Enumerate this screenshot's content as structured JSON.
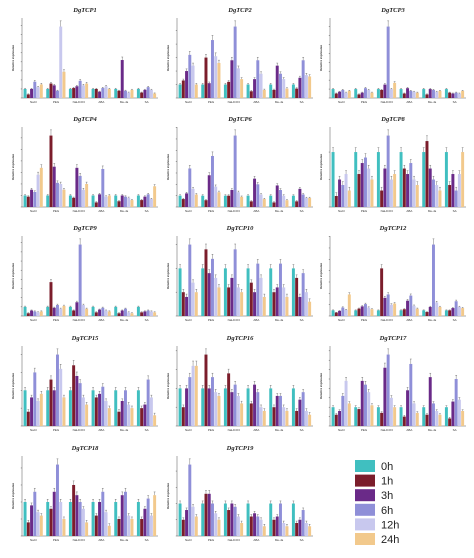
{
  "colors": {
    "0h": "#40bfc0",
    "1h": "#7b1d2b",
    "3h": "#6a2a88",
    "6h": "#8f8fd8",
    "12h": "#c8c8ee",
    "24h": "#f2c98c"
  },
  "legend": {
    "entries": [
      "0h",
      "1h",
      "3h",
      "6h",
      "12h",
      "24h"
    ]
  },
  "chart_data": [
    {
      "type": "bar",
      "title": "DgTCP1",
      "ylabel": "Relative expression",
      "categories": [
        "NaCl",
        "PEG",
        "NaHCO3",
        "ABA",
        "Me-Ja",
        "SA"
      ],
      "series": [
        {
          "name": "0h",
          "values": [
            1,
            1,
            1,
            1,
            1,
            1
          ]
        },
        {
          "name": "1h",
          "values": [
            0.4,
            1.6,
            1.1,
            1.0,
            0.8,
            0.6
          ]
        },
        {
          "name": "3h",
          "values": [
            1.0,
            1.4,
            1.3,
            0.7,
            4.2,
            0.9
          ]
        },
        {
          "name": "6h",
          "values": [
            1.8,
            0.8,
            1.9,
            1.1,
            0.8,
            1.2
          ]
        },
        {
          "name": "12h",
          "values": [
            1.2,
            7.9,
            1.4,
            1.3,
            0.6,
            0.9
          ]
        },
        {
          "name": "24h",
          "values": [
            1.5,
            2.9,
            1.6,
            1.0,
            0.9,
            0.5
          ]
        }
      ]
    },
    {
      "type": "bar",
      "title": "DgTCP2",
      "ylabel": "Relative expression",
      "categories": [
        "NaCl",
        "PEG",
        "NaHCO3",
        "ABA",
        "Me-Ja",
        "SA"
      ],
      "series": [
        {
          "name": "0h",
          "values": [
            1,
            1,
            1,
            1,
            1,
            1
          ]
        },
        {
          "name": "1h",
          "values": [
            1.3,
            3.0,
            1.2,
            0.5,
            0.6,
            0.7
          ]
        },
        {
          "name": "3h",
          "values": [
            2.0,
            1.1,
            2.8,
            1.4,
            2.4,
            1.5
          ]
        },
        {
          "name": "6h",
          "values": [
            3.2,
            4.3,
            5.3,
            2.8,
            1.8,
            2.8
          ]
        },
        {
          "name": "12h",
          "values": [
            2.4,
            3.1,
            2.2,
            1.8,
            1.4,
            1.7
          ]
        },
        {
          "name": "24h",
          "values": [
            1.0,
            2.6,
            1.4,
            0.6,
            0.7,
            1.6
          ]
        }
      ]
    },
    {
      "type": "bar",
      "title": "DgTCP3",
      "ylabel": "Relative expression",
      "categories": [
        "NaCl",
        "PEG",
        "NaHCO3",
        "ABA",
        "Me-Ja",
        "SA"
      ],
      "series": [
        {
          "name": "0h",
          "values": [
            1,
            1,
            1,
            1,
            1,
            1
          ]
        },
        {
          "name": "1h",
          "values": [
            0.5,
            0.4,
            0.9,
            0.5,
            0.4,
            0.6
          ]
        },
        {
          "name": "3h",
          "values": [
            0.7,
            0.6,
            1.5,
            1.1,
            1.0,
            0.5
          ]
        },
        {
          "name": "6h",
          "values": [
            0.9,
            1.1,
            8.0,
            0.8,
            0.9,
            0.6
          ]
        },
        {
          "name": "12h",
          "values": [
            0.6,
            0.9,
            1.0,
            0.7,
            0.7,
            0.5
          ]
        },
        {
          "name": "24h",
          "values": [
            0.8,
            0.6,
            1.7,
            0.6,
            0.8,
            0.8
          ]
        }
      ]
    },
    {
      "type": "bar",
      "title": "DgTCP4",
      "ylabel": "Relative expression",
      "categories": [
        "NaCl",
        "PEG",
        "NaHCO3",
        "ABA",
        "Me-Ja",
        "SA"
      ],
      "series": [
        {
          "name": "0h",
          "values": [
            1,
            1,
            1,
            1,
            1,
            1
          ]
        },
        {
          "name": "1h",
          "values": [
            0.9,
            6.2,
            0.8,
            0.4,
            0.5,
            0.6
          ]
        },
        {
          "name": "3h",
          "values": [
            1.5,
            3.5,
            3.4,
            1.1,
            1.0,
            0.9
          ]
        },
        {
          "name": "6h",
          "values": [
            1.3,
            2.1,
            2.7,
            3.3,
            0.9,
            1.1
          ]
        },
        {
          "name": "12h",
          "values": [
            2.8,
            2.0,
            1.5,
            0.9,
            0.8,
            0.7
          ]
        },
        {
          "name": "24h",
          "values": [
            3.4,
            1.5,
            2.0,
            1.0,
            0.6,
            1.8
          ]
        }
      ]
    },
    {
      "type": "bar",
      "title": "DgTCP6",
      "ylabel": "Relative expression",
      "categories": [
        "NaCl",
        "PEG",
        "NaHCO3",
        "ABA",
        "Me-Ja",
        "SA"
      ],
      "series": [
        {
          "name": "0h",
          "values": [
            1,
            1,
            1,
            1,
            1,
            1
          ]
        },
        {
          "name": "1h",
          "values": [
            0.7,
            0.6,
            1.0,
            0.5,
            0.4,
            0.5
          ]
        },
        {
          "name": "3h",
          "values": [
            1.2,
            2.8,
            1.5,
            2.5,
            1.9,
            1.6
          ]
        },
        {
          "name": "6h",
          "values": [
            3.4,
            4.5,
            6.3,
            2.0,
            1.5,
            1.1
          ]
        },
        {
          "name": "12h",
          "values": [
            1.6,
            1.8,
            1.3,
            1.1,
            1.0,
            0.8
          ]
        },
        {
          "name": "24h",
          "values": [
            1.1,
            1.3,
            0.9,
            0.7,
            0.6,
            0.8
          ]
        }
      ]
    },
    {
      "type": "bar",
      "title": "DgTCP8",
      "ylabel": "Relative expression",
      "categories": [
        "NaCl",
        "PEG",
        "NaHCO3",
        "ABA",
        "Me-Ja",
        "SA"
      ],
      "series": [
        {
          "name": "0h",
          "values": [
            1,
            1,
            1,
            1,
            1,
            1
          ]
        },
        {
          "name": "1h",
          "values": [
            0.2,
            0.6,
            0.3,
            0.7,
            1.2,
            0.4
          ]
        },
        {
          "name": "3h",
          "values": [
            0.5,
            0.8,
            0.7,
            0.6,
            0.7,
            0.6
          ]
        },
        {
          "name": "6h",
          "values": [
            0.4,
            0.9,
            1.3,
            0.8,
            0.5,
            0.3
          ]
        },
        {
          "name": "12h",
          "values": [
            0.6,
            0.7,
            0.5,
            0.5,
            0.4,
            0.6
          ]
        },
        {
          "name": "24h",
          "values": [
            0.3,
            0.5,
            0.6,
            0.4,
            0.3,
            1.0
          ]
        }
      ]
    },
    {
      "type": "bar",
      "title": "DgTCP9",
      "ylabel": "Relative expression",
      "categories": [
        "NaCl",
        "PEG",
        "NaHCO3",
        "ABA",
        "Me-Ja",
        "SA"
      ],
      "series": [
        {
          "name": "0h",
          "values": [
            1,
            1,
            1,
            1,
            1,
            1
          ]
        },
        {
          "name": "1h",
          "values": [
            0.3,
            3.7,
            0.6,
            0.4,
            0.3,
            0.4
          ]
        },
        {
          "name": "3h",
          "values": [
            0.6,
            0.9,
            1.5,
            0.7,
            0.6,
            0.5
          ]
        },
        {
          "name": "6h",
          "values": [
            0.5,
            1.2,
            7.8,
            0.9,
            0.8,
            0.6
          ]
        },
        {
          "name": "12h",
          "values": [
            0.4,
            0.8,
            1.2,
            0.6,
            0.4,
            0.5
          ]
        },
        {
          "name": "24h",
          "values": [
            0.5,
            1.1,
            0.8,
            0.5,
            0.3,
            0.4
          ]
        }
      ]
    },
    {
      "type": "bar",
      "title": "DgTCP10",
      "ylabel": "Relative expression",
      "categories": [
        "NaCl",
        "PEG",
        "NaHCO3",
        "ABA",
        "Me-Ja",
        "SA"
      ],
      "series": [
        {
          "name": "0h",
          "values": [
            1,
            1,
            1,
            1,
            1,
            1
          ]
        },
        {
          "name": "1h",
          "values": [
            0.5,
            1.4,
            0.6,
            0.7,
            0.5,
            0.8
          ]
        },
        {
          "name": "3h",
          "values": [
            0.4,
            0.9,
            0.8,
            0.5,
            0.6,
            0.4
          ]
        },
        {
          "name": "6h",
          "values": [
            1.5,
            1.2,
            1.4,
            1.1,
            1.1,
            0.9
          ]
        },
        {
          "name": "12h",
          "values": [
            0.7,
            0.8,
            0.6,
            0.8,
            0.6,
            0.5
          ]
        },
        {
          "name": "24h",
          "values": [
            0.5,
            0.6,
            0.5,
            0.4,
            0.4,
            0.3
          ]
        }
      ]
    },
    {
      "type": "bar",
      "title": "DgTCP12",
      "ylabel": "Relative expression",
      "categories": [
        "NaCl",
        "PEG",
        "NaHCO3",
        "ABA",
        "Me-Ja",
        "SA"
      ],
      "series": [
        {
          "name": "0h",
          "values": [
            1,
            1,
            1,
            1,
            1,
            1
          ]
        },
        {
          "name": "1h",
          "values": [
            0.6,
            1.3,
            8.4,
            1.2,
            0.7,
            1.0
          ]
        },
        {
          "name": "3h",
          "values": [
            0.9,
            1.7,
            3.2,
            2.7,
            1.6,
            1.4
          ]
        },
        {
          "name": "6h",
          "values": [
            1.5,
            2.1,
            3.8,
            3.6,
            12.6,
            2.6
          ]
        },
        {
          "name": "12h",
          "values": [
            1.1,
            1.5,
            2.0,
            1.8,
            2.4,
            1.6
          ]
        },
        {
          "name": "24h",
          "values": [
            3.8,
            1.2,
            2.2,
            1.3,
            1.6,
            1.4
          ]
        }
      ]
    },
    {
      "type": "bar",
      "title": "DgTCP15",
      "ylabel": "Relative expression",
      "categories": [
        "NaCl",
        "PEG",
        "NaHCO3",
        "ABA",
        "Me-Ja",
        "SA"
      ],
      "series": [
        {
          "name": "0h",
          "values": [
            1,
            1,
            1,
            1,
            1,
            1
          ]
        },
        {
          "name": "1h",
          "values": [
            0.4,
            1.3,
            1.7,
            0.8,
            0.4,
            0.5
          ]
        },
        {
          "name": "3h",
          "values": [
            0.8,
            1.0,
            1.4,
            0.9,
            0.7,
            0.6
          ]
        },
        {
          "name": "6h",
          "values": [
            1.5,
            2.0,
            1.2,
            1.1,
            1.0,
            1.3
          ]
        },
        {
          "name": "12h",
          "values": [
            0.7,
            1.6,
            0.8,
            0.7,
            0.6,
            0.8
          ]
        },
        {
          "name": "24h",
          "values": [
            0.9,
            0.8,
            0.6,
            0.5,
            0.5,
            0.3
          ]
        }
      ]
    },
    {
      "type": "bar",
      "title": "DgTCP16",
      "ylabel": "Relative expression",
      "categories": [
        "NaCl",
        "PEG",
        "NaHCO3",
        "ABA",
        "Me-Ja",
        "SA"
      ],
      "series": [
        {
          "name": "0h",
          "values": [
            1,
            1,
            1,
            1,
            1,
            1
          ]
        },
        {
          "name": "1h",
          "values": [
            0.5,
            1.9,
            1.4,
            0.6,
            0.5,
            0.4
          ]
        },
        {
          "name": "3h",
          "values": [
            1.0,
            1.0,
            0.9,
            1.1,
            0.8,
            0.7
          ]
        },
        {
          "name": "6h",
          "values": [
            1.3,
            1.3,
            1.1,
            0.9,
            0.8,
            0.9
          ]
        },
        {
          "name": "12h",
          "values": [
            1.6,
            0.9,
            0.8,
            0.5,
            0.5,
            0.4
          ]
        },
        {
          "name": "24h",
          "values": [
            1.6,
            0.8,
            0.6,
            0.4,
            0.4,
            0.3
          ]
        }
      ]
    },
    {
      "type": "bar",
      "title": "DgTCP17",
      "ylabel": "Relative expression",
      "categories": [
        "NaCl",
        "PEG",
        "NaHCO3",
        "ABA",
        "Me-Ja",
        "SA"
      ],
      "series": [
        {
          "name": "0h",
          "values": [
            1,
            1,
            1,
            1,
            1,
            1
          ]
        },
        {
          "name": "1h",
          "values": [
            0.6,
            0.9,
            0.7,
            0.5,
            0.6,
            0.4
          ]
        },
        {
          "name": "3h",
          "values": [
            0.8,
            2.4,
            3.1,
            1.9,
            2.6,
            1.3
          ]
        },
        {
          "name": "6h",
          "values": [
            1.6,
            2.2,
            3.8,
            3.3,
            1.2,
            2.5
          ]
        },
        {
          "name": "12h",
          "values": [
            2.4,
            1.8,
            1.5,
            1.2,
            0.8,
            1.4
          ]
        },
        {
          "name": "24h",
          "values": [
            1.2,
            1.1,
            1.0,
            0.7,
            0.6,
            0.8
          ]
        }
      ]
    },
    {
      "type": "bar",
      "title": "DgTCP18",
      "ylabel": "Relative expression",
      "categories": [
        "NaCl",
        "PEG",
        "NaHCO3",
        "ABA",
        "Me-Ja",
        "SA"
      ],
      "series": [
        {
          "name": "0h",
          "values": [
            1,
            1,
            1,
            1,
            1,
            1
          ]
        },
        {
          "name": "1h",
          "values": [
            0.4,
            0.8,
            1.5,
            0.6,
            0.5,
            0.5
          ]
        },
        {
          "name": "3h",
          "values": [
            0.9,
            1.3,
            1.2,
            1.0,
            1.2,
            0.8
          ]
        },
        {
          "name": "6h",
          "values": [
            1.3,
            2.1,
            1.0,
            1.3,
            1.3,
            1.1
          ]
        },
        {
          "name": "12h",
          "values": [
            0.7,
            1.0,
            0.8,
            0.7,
            0.6,
            0.6
          ]
        },
        {
          "name": "24h",
          "values": [
            0.6,
            0.5,
            0.4,
            0.3,
            0.5,
            1.2
          ]
        }
      ]
    },
    {
      "type": "bar",
      "title": "DgTCP19",
      "ylabel": "Relative expression",
      "categories": [
        "NaCl",
        "PEG",
        "NaHCO3",
        "ABA",
        "Me-Ja",
        "SA"
      ],
      "series": [
        {
          "name": "0h",
          "values": [
            1,
            1,
            1,
            1,
            1,
            1
          ]
        },
        {
          "name": "1h",
          "values": [
            0.5,
            1.3,
            0.8,
            0.6,
            0.5,
            0.4
          ]
        },
        {
          "name": "3h",
          "values": [
            0.8,
            1.3,
            1.0,
            0.7,
            0.6,
            0.5
          ]
        },
        {
          "name": "6h",
          "values": [
            2.2,
            1.0,
            0.9,
            0.6,
            1.0,
            0.8
          ]
        },
        {
          "name": "12h",
          "values": [
            0.9,
            0.7,
            0.6,
            0.5,
            0.4,
            0.4
          ]
        },
        {
          "name": "24h",
          "values": [
            0.6,
            0.5,
            0.4,
            0.3,
            0.3,
            0.3
          ]
        }
      ]
    }
  ]
}
